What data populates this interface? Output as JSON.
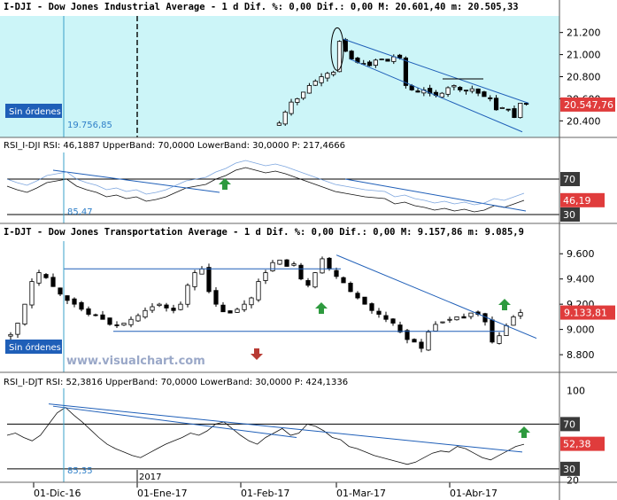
{
  "colors": {
    "background": "#ffffff",
    "panel_highlight": "#ccf5f8",
    "trend_line": "#1f5fb8",
    "rsi_line": "#5b8fd6",
    "price_box": "#e03c3c",
    "level_box": "#3a3a3a",
    "orders_box": "#1f5fb8",
    "arrow_up": "#2e9a3e",
    "arrow_down": "#b83a33",
    "watermark": "#9aa8c8"
  },
  "panels": [
    {
      "id": "dji-price",
      "header": "I-DJI - Dow Jones Industrial Average -  1 d Dif. %: 0,00 Dif.: 0,00 M: 20.601,40 m: 20.505,33",
      "type": "candlestick",
      "ticks": [
        "21.200",
        "21.000",
        "20.800",
        "20.600",
        "20.400"
      ],
      "price_label": "20.547,76",
      "orders_label": "Sin órdenes",
      "reference_value": "19.756,85",
      "chart_data": {
        "type": "candlestick",
        "symbol": "I-DJI",
        "name": "Dow Jones Industrial Average",
        "ylim": [
          20250,
          21350
        ],
        "yticks": [
          21200,
          21000,
          20800,
          20600,
          20400
        ],
        "last": 20547.76,
        "high": 20601.4,
        "low": 20505.33,
        "closes": [
          20380,
          20480,
          20570,
          20600,
          20660,
          20720,
          20760,
          20800,
          20830,
          20840,
          21120,
          21030,
          20960,
          20930,
          20920,
          20900,
          20950,
          20960,
          20940,
          20980,
          20970,
          20720,
          20680,
          20660,
          20680,
          20650,
          20630,
          20650,
          20700,
          20720,
          20680,
          20670,
          20690,
          20650,
          20620,
          20600,
          20500,
          20520,
          20500,
          20430,
          20560,
          20550
        ]
      }
    },
    {
      "id": "dji-rsi",
      "header": "RSI_I-DJI RSI: 46,1887 UpperBand: 70,0000 LowerBand: 30,0000 P: 217,4666",
      "type": "rsi",
      "ticks": [
        "70",
        "46,19",
        "30"
      ],
      "bottom_label": "85,47",
      "chart_data": {
        "type": "line",
        "indicator": "RSI",
        "ylim": [
          20,
          100
        ],
        "upper_band": 70,
        "lower_band": 30,
        "rsi": 46.1887,
        "p": 217.4666,
        "values": [
          62,
          58,
          55,
          60,
          66,
          68,
          70,
          62,
          58,
          55,
          50,
          52,
          48,
          50,
          45,
          47,
          50,
          55,
          60,
          62,
          64,
          70,
          74,
          80,
          83,
          80,
          77,
          79,
          76,
          72,
          68,
          64,
          60,
          56,
          54,
          52,
          50,
          49,
          48,
          42,
          44,
          40,
          38,
          35,
          37,
          34,
          36,
          33,
          35,
          40,
          38,
          42,
          46
        ]
      }
    },
    {
      "id": "djt-price",
      "header": "I-DJT - Dow Jones Transportation Average -  1 d Dif. %: 0,00 Dif.: 0,00 M: 9.157,86 m: 9.085,9",
      "type": "candlestick",
      "ticks": [
        "9.600",
        "9.400",
        "9.200",
        "9.000",
        "8.800"
      ],
      "price_label": "9.133,81",
      "orders_label": "Sin órdenes",
      "watermark": "www.visualchart.com",
      "chart_data": {
        "type": "candlestick",
        "symbol": "I-DJT",
        "name": "Dow Jones Transportation Average",
        "ylim": [
          8660,
          9700
        ],
        "yticks": [
          9600,
          9400,
          9200,
          9000,
          8800
        ],
        "last": 9133.81,
        "high": 9157.86,
        "low": 9085.9,
        "closes": [
          8960,
          9050,
          9200,
          9380,
          9450,
          9410,
          9340,
          9280,
          9230,
          9200,
          9160,
          9120,
          9110,
          9080,
          9040,
          9030,
          9050,
          9080,
          9110,
          9150,
          9180,
          9200,
          9170,
          9150,
          9200,
          9350,
          9450,
          9480,
          9300,
          9200,
          9140,
          9130,
          9160,
          9200,
          9250,
          9380,
          9450,
          9530,
          9550,
          9500,
          9520,
          9400,
          9350,
          9450,
          9560,
          9480,
          9420,
          9370,
          9300,
          9250,
          9200,
          9150,
          9120,
          9080,
          9050,
          8980,
          8920,
          8900,
          8850,
          8980,
          9040,
          9060,
          9080,
          9100,
          9090,
          9130,
          9120,
          9060,
          8900,
          8950,
          9030,
          9100,
          9134
        ]
      }
    },
    {
      "id": "djt-rsi",
      "header": "RSI_I-DJT RSI: 52,3816 UpperBand: 70,0000 LowerBand: 30,0000 P: 424,1336",
      "type": "rsi",
      "ticks": [
        "100",
        "70",
        "52,38",
        "30",
        "20"
      ],
      "bottom_label": "85,35",
      "year_label": "2017",
      "chart_data": {
        "type": "line",
        "indicator": "RSI",
        "ylim": [
          18,
          102
        ],
        "upper_band": 70,
        "lower_band": 30,
        "rsi": 52.3816,
        "p": 424.1336,
        "values": [
          60,
          62,
          58,
          55,
          60,
          70,
          80,
          85,
          78,
          72,
          65,
          58,
          52,
          48,
          45,
          42,
          40,
          44,
          48,
          52,
          55,
          58,
          62,
          60,
          64,
          70,
          72,
          66,
          60,
          55,
          52,
          58,
          62,
          66,
          60,
          62,
          70,
          68,
          64,
          58,
          56,
          50,
          48,
          45,
          42,
          40,
          38,
          36,
          34,
          36,
          40,
          44,
          46,
          45,
          50,
          48,
          44,
          40,
          38,
          42,
          46,
          50,
          52
        ]
      }
    }
  ],
  "x_axis": {
    "labels": [
      "01-Dic-16",
      "01-Ene-17",
      "01-Feb-17",
      "01-Mar-17",
      "01-Abr-17"
    ]
  }
}
